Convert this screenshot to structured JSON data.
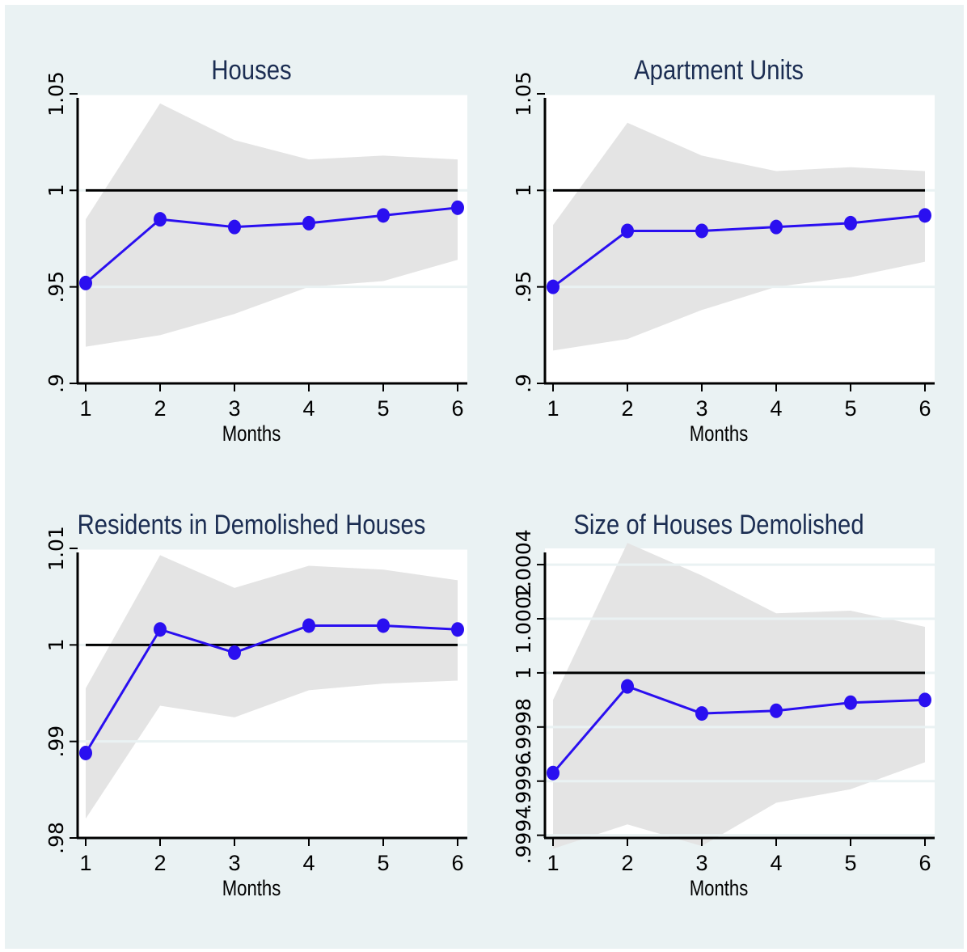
{
  "colors": {
    "background": "#eaf2f3",
    "plot_area": "#ffffff",
    "band": "#e4e4e4",
    "series": "#2a0ff0",
    "reference_line": "#000000",
    "title": "#1b2d52"
  },
  "chart_data": [
    {
      "type": "line",
      "title": "Houses",
      "xlabel": "Months",
      "ylabel": "",
      "x": [
        1,
        2,
        3,
        4,
        5,
        6
      ],
      "xticks": [
        "1",
        "2",
        "3",
        "4",
        "5",
        "6"
      ],
      "ylim": [
        0.9,
        1.05
      ],
      "yticks": [
        0.9,
        0.95,
        1,
        1.05
      ],
      "ytick_labels": [
        ".9",
        ".95",
        "1",
        "1.05"
      ],
      "grid": true,
      "reference_line": 1,
      "series": [
        {
          "values": [
            0.952,
            0.985,
            0.981,
            0.983,
            0.987,
            0.991
          ]
        }
      ],
      "band": {
        "lower": [
          0.919,
          0.925,
          0.936,
          0.95,
          0.953,
          0.964
        ],
        "upper": [
          0.985,
          1.045,
          1.026,
          1.016,
          1.018,
          1.016
        ]
      }
    },
    {
      "type": "line",
      "title": "Apartment Units",
      "xlabel": "Months",
      "ylabel": "",
      "x": [
        1,
        2,
        3,
        4,
        5,
        6
      ],
      "xticks": [
        "1",
        "2",
        "3",
        "4",
        "5",
        "6"
      ],
      "ylim": [
        0.9,
        1.05
      ],
      "yticks": [
        0.9,
        0.95,
        1,
        1.05
      ],
      "ytick_labels": [
        ".9",
        ".95",
        "1",
        "1.05"
      ],
      "grid": true,
      "reference_line": 1,
      "series": [
        {
          "values": [
            0.95,
            0.979,
            0.979,
            0.981,
            0.983,
            0.987
          ]
        }
      ],
      "band": {
        "lower": [
          0.917,
          0.923,
          0.938,
          0.95,
          0.955,
          0.963
        ],
        "upper": [
          0.982,
          1.035,
          1.018,
          1.01,
          1.012,
          1.01
        ]
      }
    },
    {
      "type": "line",
      "title": "Residents in Demolished Houses",
      "xlabel": "Months",
      "ylabel": "",
      "x": [
        1,
        2,
        3,
        4,
        5,
        6
      ],
      "xticks": [
        "1",
        "2",
        "3",
        "4",
        "5",
        "6"
      ],
      "ylim": [
        0.98,
        1.01
      ],
      "yticks": [
        0.98,
        0.99,
        1,
        1.01
      ],
      "ytick_labels": [
        ".98",
        ".99",
        "1",
        "1.01"
      ],
      "grid": true,
      "reference_line": 1,
      "series": [
        {
          "values": [
            0.9888,
            1.0016,
            0.9992,
            1.002,
            1.002,
            1.0016
          ]
        }
      ],
      "band": {
        "lower": [
          0.982,
          0.9937,
          0.9925,
          0.9953,
          0.996,
          0.9963
        ],
        "upper": [
          0.9955,
          1.0093,
          1.0059,
          1.0082,
          1.0078,
          1.0067
        ]
      }
    },
    {
      "type": "line",
      "title": "Size of Houses Demolished",
      "xlabel": "Months",
      "ylabel": "",
      "x": [
        1,
        2,
        3,
        4,
        5,
        6
      ],
      "xticks": [
        "1",
        "2",
        "3",
        "4",
        "5",
        "6"
      ],
      "ylim": [
        0.99939,
        1.00046
      ],
      "yticks": [
        0.9994,
        0.9996,
        0.9998,
        1,
        1.0002,
        1.0004
      ],
      "ytick_labels": [
        ".9994",
        ".9996",
        ".9998",
        "1",
        "1.0002",
        "1.0004"
      ],
      "grid": true,
      "reference_line": 1,
      "series": [
        {
          "values": [
            0.99963,
            0.99995,
            0.99985,
            0.99986,
            0.99989,
            0.9999
          ]
        }
      ],
      "band": {
        "lower": [
          0.99935,
          0.99944,
          0.99936,
          0.99952,
          0.99957,
          0.99967
        ],
        "upper": [
          0.9999,
          1.00048,
          1.00036,
          1.00022,
          1.00023,
          1.00017
        ]
      }
    }
  ]
}
